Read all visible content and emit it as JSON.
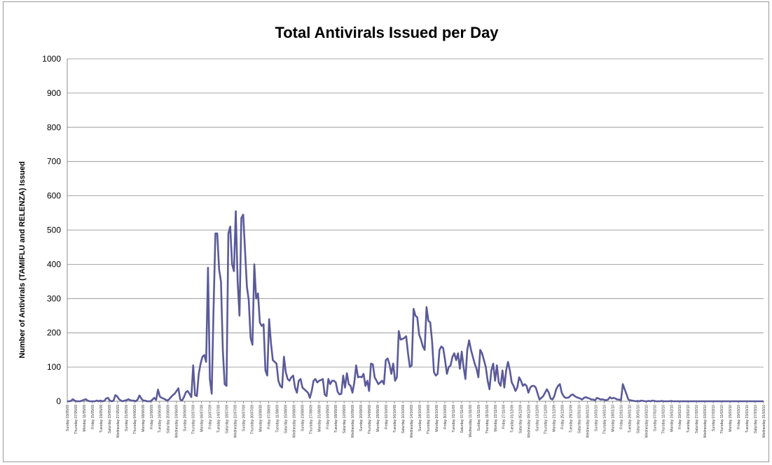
{
  "chart_data": {
    "type": "line",
    "title": "Total Antivirals Issued per Day",
    "ylabel": "Number of Antivirals (TAMIFLU and RELENZA) Issued",
    "xlabel": "",
    "ylim": [
      0,
      1000
    ],
    "yticks": [
      0,
      100,
      200,
      300,
      400,
      500,
      600,
      700,
      800,
      900,
      1000
    ],
    "grid": true,
    "legend": "none",
    "series_color": "#5a5a9a",
    "x_tick_labels": [
      "Sunday 03/05/09",
      "Thursday 07/05/09",
      "Monday 11/05/09",
      "Friday 15/05/09",
      "Tuesday 19/05/09",
      "Saturday 23/05/09",
      "Wednesday 27/05/09",
      "Sunday 31/05/09",
      "Thursday 04/06/09",
      "Monday 08/06/09",
      "Friday 12/06/09",
      "Tuesday 16/06/09",
      "Saturday 20/06/09",
      "Wednesday 24/06/09",
      "Sunday 28/06/09",
      "Thursday 02/07/09",
      "Monday 06/07/09",
      "Friday 10/07/09",
      "Tuesday 14/07/09",
      "Saturday 18/07/09",
      "Wednesday 22/07/09",
      "Sunday 26/07/09",
      "Thursday 30/07/09",
      "Monday 03/08/09",
      "Friday 07/08/09",
      "Tuesday 11/08/09",
      "Saturday 15/08/09",
      "Wednesday 19/08/09",
      "Sunday 23/08/09",
      "Thursday 27/08/09",
      "Monday 31/08/09",
      "Friday 04/09/09",
      "Tuesday 08/09/09",
      "Saturday 12/09/09",
      "Wednesday 16/09/09",
      "Sunday 20/09/09",
      "Thursday 24/09/09",
      "Monday 28/09/09",
      "Friday 02/10/09",
      "Tuesday 06/10/09",
      "Saturday 10/10/09",
      "Wednesday 14/10/09",
      "Sunday 18/10/09",
      "Thursday 22/10/09",
      "Monday 26/10/09",
      "Friday 30/10/09",
      "Tuesday 03/11/09",
      "Saturday 07/11/09",
      "Wednesday 11/11/09",
      "Sunday 15/11/09",
      "Thursday 19/11/09",
      "Monday 23/11/09",
      "Friday 27/11/09",
      "Tuesday 01/12/09",
      "Saturday 05/12/09",
      "Wednesday 09/12/09",
      "Sunday 13/12/09",
      "Thursday 17/12/09",
      "Monday 21/12/09",
      "Friday 25/12/09",
      "Tuesday 29/12/09",
      "Saturday 02/01/10",
      "Wednesday 06/01/10",
      "Sunday 10/01/10",
      "Thursday 14/01/10",
      "Monday 18/01/10",
      "Friday 22/01/10",
      "Tuesday 26/01/10",
      "Saturday 30/01/10",
      "Wednesday 03/02/10",
      "Sunday 07/02/10",
      "Thursday 11/02/10",
      "Monday 15/02/10",
      "Friday 19/02/10",
      "Tuesday 23/02/10",
      "Saturday 27/02/10",
      "Wednesday 03/03/10",
      "Sunday 07/03/10",
      "Thursday 11/03/10",
      "Monday 15/03/10",
      "Friday 19/03/10",
      "Tuesday 23/03/10",
      "Saturday 27/03/10",
      "Wednesday 31/03/10"
    ],
    "points_per_tick": 4,
    "values": [
      0,
      0,
      1,
      6,
      2,
      0,
      0,
      0,
      2,
      4,
      6,
      2,
      0,
      0,
      0,
      0,
      2,
      0,
      2,
      0,
      1,
      8,
      10,
      2,
      0,
      2,
      18,
      14,
      6,
      2,
      0,
      2,
      3,
      6,
      3,
      2,
      2,
      0,
      5,
      17,
      8,
      2,
      2,
      0,
      0,
      0,
      5,
      10,
      4,
      34,
      14,
      10,
      8,
      5,
      2,
      6,
      12,
      18,
      22,
      30,
      38,
      5,
      2,
      12,
      26,
      30,
      22,
      12,
      105,
      18,
      15,
      80,
      110,
      130,
      135,
      115,
      390,
      65,
      22,
      270,
      490,
      490,
      385,
      350,
      150,
      50,
      45,
      490,
      510,
      400,
      380,
      555,
      350,
      250,
      535,
      545,
      440,
      335,
      295,
      185,
      165,
      400,
      300,
      315,
      230,
      220,
      225,
      90,
      75,
      240,
      170,
      120,
      115,
      110,
      60,
      45,
      40,
      130,
      85,
      65,
      60,
      70,
      75,
      40,
      25,
      60,
      65,
      40,
      35,
      30,
      25,
      10,
      30,
      60,
      65,
      55,
      60,
      62,
      65,
      20,
      15,
      65,
      50,
      60,
      60,
      55,
      28,
      20,
      22,
      75,
      40,
      82,
      50,
      45,
      25,
      55,
      105,
      70,
      72,
      70,
      80,
      45,
      60,
      30,
      110,
      108,
      70,
      60,
      50,
      55,
      60,
      50,
      120,
      125,
      108,
      80,
      110,
      60,
      70,
      205,
      180,
      182,
      185,
      190,
      140,
      100,
      105,
      270,
      250,
      245,
      195,
      180,
      160,
      150,
      275,
      235,
      230,
      175,
      85,
      75,
      80,
      150,
      160,
      155,
      120,
      80,
      100,
      105,
      130,
      140,
      120,
      140,
      95,
      145,
      100,
      65,
      150,
      178,
      150,
      130,
      110,
      95,
      70,
      150,
      140,
      120,
      100,
      60,
      35,
      90,
      110,
      60,
      105,
      55,
      45,
      90,
      40,
      90,
      115,
      90,
      55,
      45,
      30,
      40,
      70,
      60,
      45,
      50,
      45,
      25,
      40,
      45,
      45,
      40,
      22,
      5,
      10,
      15,
      25,
      35,
      25,
      8,
      5,
      15,
      35,
      45,
      50,
      25,
      15,
      10,
      10,
      12,
      18,
      20,
      15,
      12,
      10,
      8,
      5,
      10,
      12,
      10,
      8,
      5,
      5,
      3,
      10,
      8,
      5,
      6,
      4,
      3,
      5,
      12,
      8,
      10,
      8,
      5,
      5,
      3,
      50,
      35,
      20,
      5,
      3,
      2,
      1,
      0,
      1,
      0,
      2,
      1,
      0,
      0,
      1,
      0,
      2,
      1,
      0,
      0,
      0,
      1,
      0,
      0,
      0,
      0,
      1,
      0,
      0,
      0,
      0,
      0,
      0,
      0,
      0,
      0,
      0,
      0,
      0,
      0,
      0,
      0,
      0,
      0,
      0,
      0,
      0,
      0,
      0,
      0,
      0,
      0,
      0,
      0,
      0,
      0,
      0,
      0,
      0,
      0,
      0,
      0,
      0,
      0,
      0,
      0,
      0,
      0,
      0,
      0,
      0,
      0,
      0,
      0,
      0,
      0,
      0
    ]
  }
}
